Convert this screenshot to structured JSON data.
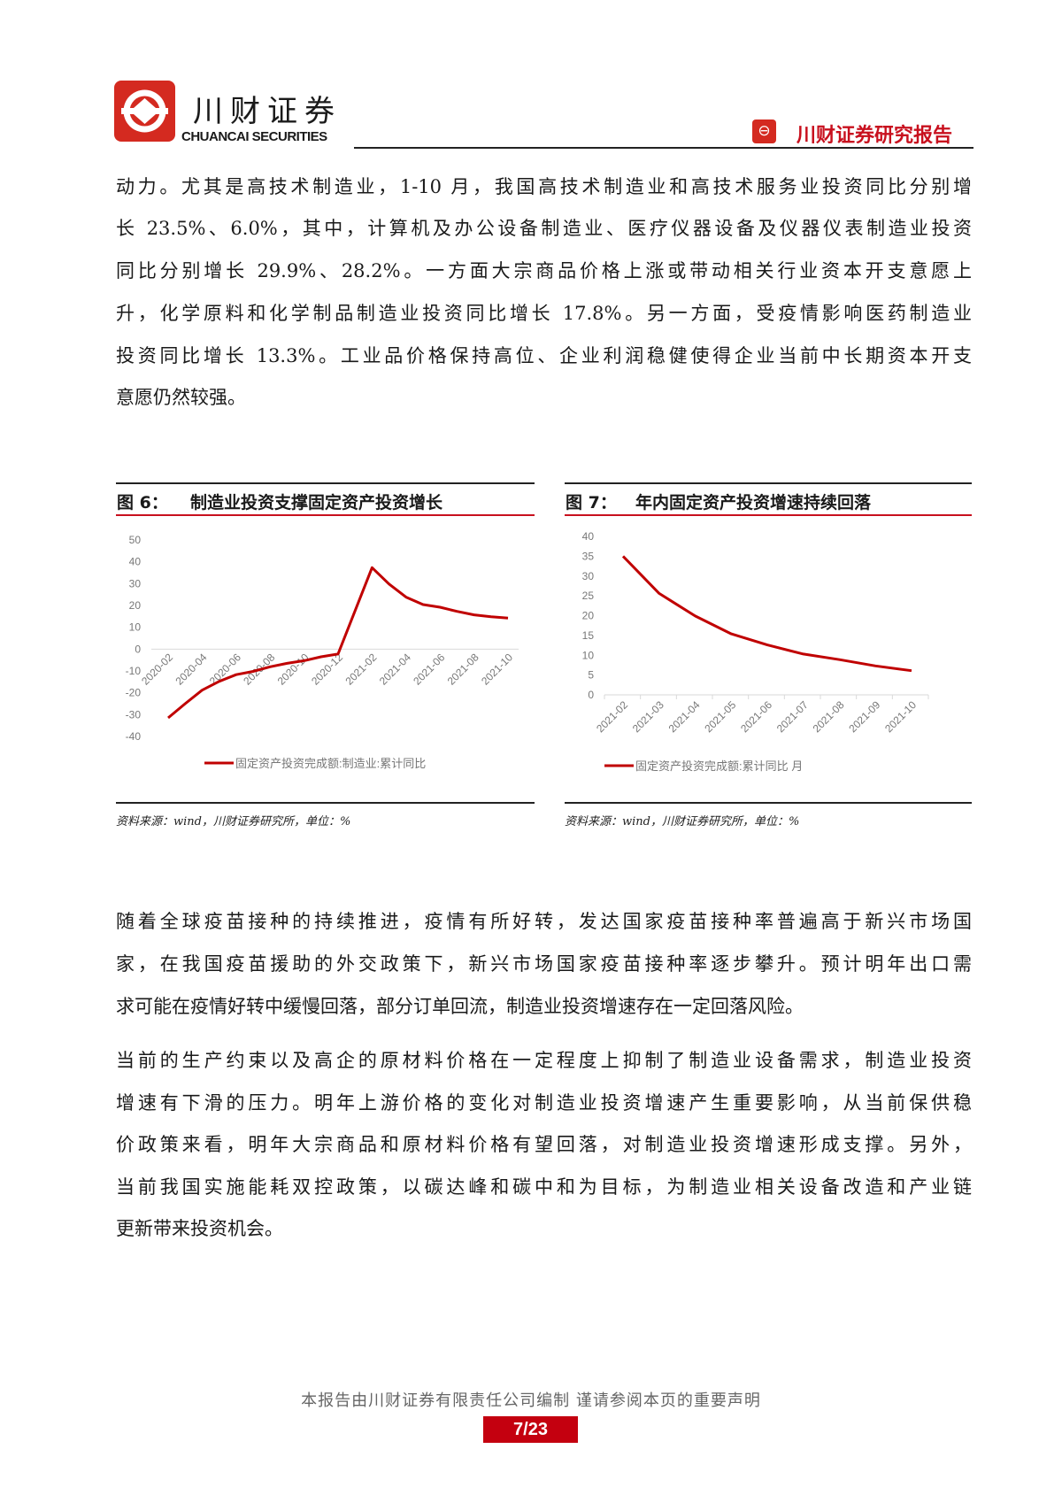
{
  "header": {
    "brand_cn": "川财证券",
    "brand_en": "CHUANCAI SECURITIES",
    "report_label": "川财证券研究报告",
    "accent": "#c8101e"
  },
  "para1": [
    "动力。尤其是高技术制造业，1-10 月，我国高技术制造业和高技术服务业投资同比分别增",
    "长 23.5%、6.0%，其中，计算机及办公设备制造业、医疗仪器设备及仪器仪表制造业投资",
    "同比分别增长 29.9%、28.2%。一方面大宗商品价格上涨或带动相关行业资本开支意愿上",
    "升，化学原料和化学制品制造业投资同比增长 17.8%。另一方面，受疫情影响医药制造业",
    "投资同比增长 13.3%。工业品价格保持高位、企业利润稳健使得企业当前中长期资本开支",
    "意愿仍然较强。"
  ],
  "para2": [
    "随着全球疫苗接种的持续推进，疫情有所好转，发达国家疫苗接种率普遍高于新兴市场国",
    "家，在我国疫苗援助的外交政策下，新兴市场国家疫苗接种率逐步攀升。预计明年出口需",
    "求可能在疫情好转中缓慢回落，部分订单回流，制造业投资增速存在一定回落风险。"
  ],
  "para3": [
    "当前的生产约束以及高企的原材料价格在一定程度上抑制了制造业设备需求，制造业投资",
    "增速有下滑的压力。明年上游价格的变化对制造业投资增速产生重要影响，从当前保供稳",
    "价政策来看，明年大宗商品和原材料价格有望回落，对制造业投资增速形成支撑。另外，",
    "当前我国实施能耗双控政策，以碳达峰和碳中和为目标，为制造业相关设备改造和产业链",
    "更新带来投资机会。"
  ],
  "figures": [
    {
      "label": "图 6：",
      "title": "制造业投资支撑固定资产投资增长",
      "source": "资料来源：wind，川财证券研究所，单位：%"
    },
    {
      "label": "图 7：",
      "title": "年内固定资产投资增速持续回落",
      "source": "资料来源：wind，川财证券研究所，单位：%"
    }
  ],
  "chart_data": [
    {
      "type": "line",
      "x": [
        "2020-02",
        "2020-03",
        "2020-04",
        "2020-05",
        "2020-06",
        "2020-07",
        "2020-08",
        "2020-09",
        "2020-10",
        "2020-11",
        "2020-12",
        "2021-01",
        "2021-02",
        "2021-03",
        "2021-04",
        "2021-05",
        "2021-06",
        "2021-07",
        "2021-08",
        "2021-09",
        "2021-10"
      ],
      "tick_labels": [
        "2020-02",
        "2020-04",
        "2020-06",
        "2020-08",
        "2020-10",
        "2020-12",
        "2021-02",
        "2021-04",
        "2021-06",
        "2021-08",
        "2021-10"
      ],
      "series": [
        {
          "name": "固定资产投资完成额:制造业:累计同比",
          "values": [
            -31.5,
            -25.0,
            -18.8,
            -14.8,
            -11.7,
            -10.2,
            -8.1,
            -6.5,
            -5.3,
            -3.5,
            -2.2,
            null,
            37.3,
            29.8,
            23.8,
            20.4,
            19.2,
            17.3,
            15.7,
            14.8,
            14.2
          ]
        }
      ],
      "ylim": [
        -40,
        50
      ],
      "yticks": [
        50,
        40,
        30,
        20,
        10,
        0,
        -10,
        -20,
        -30,
        -40
      ],
      "color": "#c00000",
      "legend": "bottom",
      "grid": false
    },
    {
      "type": "line",
      "x": [
        "2021-02",
        "2021-03",
        "2021-04",
        "2021-05",
        "2021-06",
        "2021-07",
        "2021-08",
        "2021-09",
        "2021-10"
      ],
      "tick_labels": [
        "2021-02",
        "2021-03",
        "2021-04",
        "2021-05",
        "2021-06",
        "2021-07",
        "2021-08",
        "2021-09",
        "2021-10"
      ],
      "series": [
        {
          "name": "固定资产投资完成额:累计同比 月",
          "values": [
            35.0,
            25.6,
            19.9,
            15.4,
            12.6,
            10.3,
            8.9,
            7.3,
            6.1
          ]
        }
      ],
      "ylim": [
        0,
        40
      ],
      "yticks": [
        40,
        35,
        30,
        25,
        20,
        15,
        10,
        5,
        0
      ],
      "color": "#c00000",
      "legend": "bottom",
      "grid": false
    }
  ],
  "footer": {
    "disclaimer": "本报告由川财证券有限责任公司编制 谨请参阅本页的重要声明",
    "page": "7/23"
  }
}
